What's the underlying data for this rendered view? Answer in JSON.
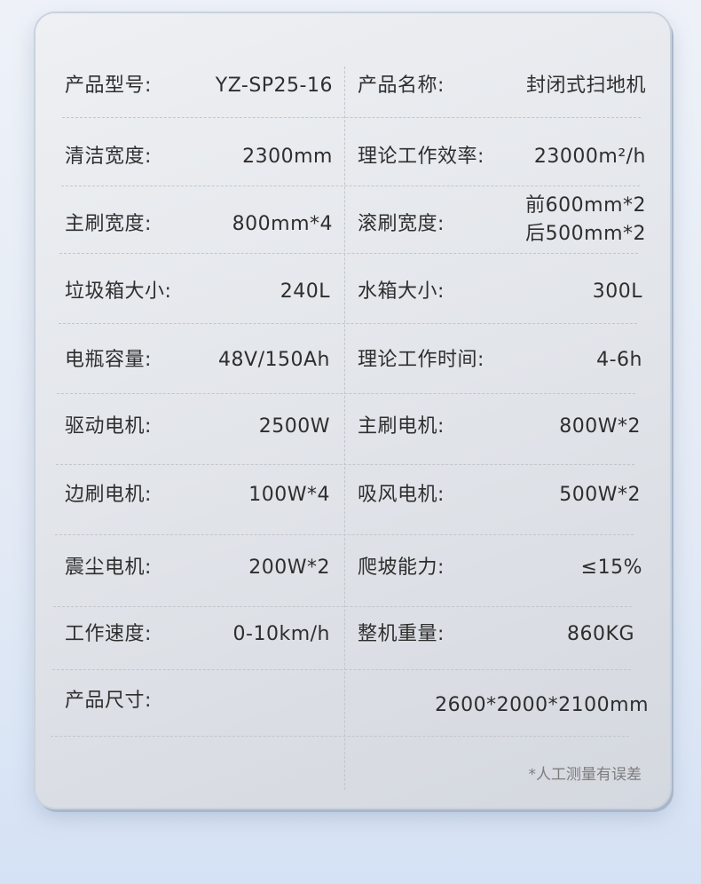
{
  "rows": [
    {
      "l_label": "产品型号:",
      "l_value": "YZ-SP25-16",
      "r_label": "产品名称:",
      "r_value": "封闭式扫地机"
    },
    {
      "l_label": "清洁宽度:",
      "l_value": "2300mm",
      "r_label": "理论工作效率:",
      "r_value": "23000m²/h"
    },
    {
      "l_label": "主刷宽度:",
      "l_value": "800mm*4",
      "r_label": "滚刷宽度:",
      "r_value": "前600mm*2",
      "r_value2": "后500mm*2"
    },
    {
      "l_label": "垃圾箱大小:",
      "l_value": "240L",
      "r_label": "水箱大小:",
      "r_value": "300L"
    },
    {
      "l_label": "电瓶容量:",
      "l_value": "48V/150Ah",
      "r_label": "理论工作时间:",
      "r_value": "4-6h"
    },
    {
      "l_label": "驱动电机:",
      "l_value": "2500W",
      "r_label": "主刷电机:",
      "r_value": "800W*2"
    },
    {
      "l_label": "边刷电机:",
      "l_value": "100W*4",
      "r_label": "吸风电机:",
      "r_value": "500W*2"
    },
    {
      "l_label": "震尘电机:",
      "l_value": "200W*2",
      "r_label": "爬坡能力:",
      "r_value": "≤15%"
    },
    {
      "l_label": "工作速度:",
      "l_value": "0-10km/h",
      "r_label": "整机重量:",
      "r_value": "860KG"
    },
    {
      "l_label": "产品尺寸:",
      "r_value": "2600*2000*2100mm"
    }
  ],
  "note": "*人工测量有误差"
}
